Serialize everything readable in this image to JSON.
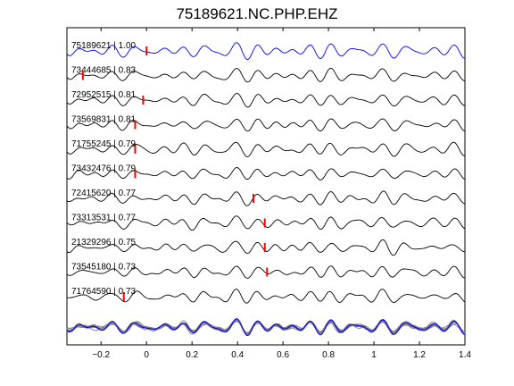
{
  "chart_data": {
    "type": "line",
    "title": "75189621.NC.PHP.EHZ",
    "xlabel": "",
    "ylabel": "",
    "xlim": [
      -0.35,
      1.4
    ],
    "x_ticks": [
      -0.2,
      0,
      0.2,
      0.4,
      0.6,
      0.8,
      1,
      1.2,
      1.4
    ],
    "x_tick_labels": [
      "−0.2",
      "0",
      "0.2",
      "0.4",
      "0.6",
      "0.8",
      "1",
      "1.2",
      "1.4"
    ],
    "grid": false,
    "colors": {
      "reference": "#0000ff",
      "trace": "#000000",
      "pick": "#ff0000",
      "stack_gray": "#808080"
    },
    "series": [
      {
        "label": "75189621 | 1.00",
        "id": "75189621",
        "cc": 1.0,
        "pick_time": 0.0
      },
      {
        "label": "73444685 | 0.83",
        "id": "73444685",
        "cc": 0.83,
        "pick_time": -0.28
      },
      {
        "label": "72952515 | 0.81",
        "id": "72952515",
        "cc": 0.81,
        "pick_time": -0.015
      },
      {
        "label": "73569831 | 0.81",
        "id": "73569831",
        "cc": 0.81,
        "pick_time": -0.05
      },
      {
        "label": "71755245 | 0.79",
        "id": "71755245",
        "cc": 0.79,
        "pick_time": -0.05
      },
      {
        "label": "73432476 | 0.79",
        "id": "73432476",
        "cc": 0.79,
        "pick_time": -0.05
      },
      {
        "label": "72415620 | 0.77",
        "id": "72415620",
        "cc": 0.77,
        "pick_time": 0.47
      },
      {
        "label": "73313531 | 0.77",
        "id": "73313531",
        "cc": 0.77,
        "pick_time": 0.52
      },
      {
        "label": "21329296 | 0.75",
        "id": "21329296",
        "cc": 0.75,
        "pick_time": 0.52
      },
      {
        "label": "73545180 | 0.73",
        "id": "73545180",
        "cc": 0.73,
        "pick_time": 0.53
      },
      {
        "label": "71764590 | 0.73",
        "id": "71764590",
        "cc": 0.73,
        "pick_time": -0.1
      }
    ]
  }
}
